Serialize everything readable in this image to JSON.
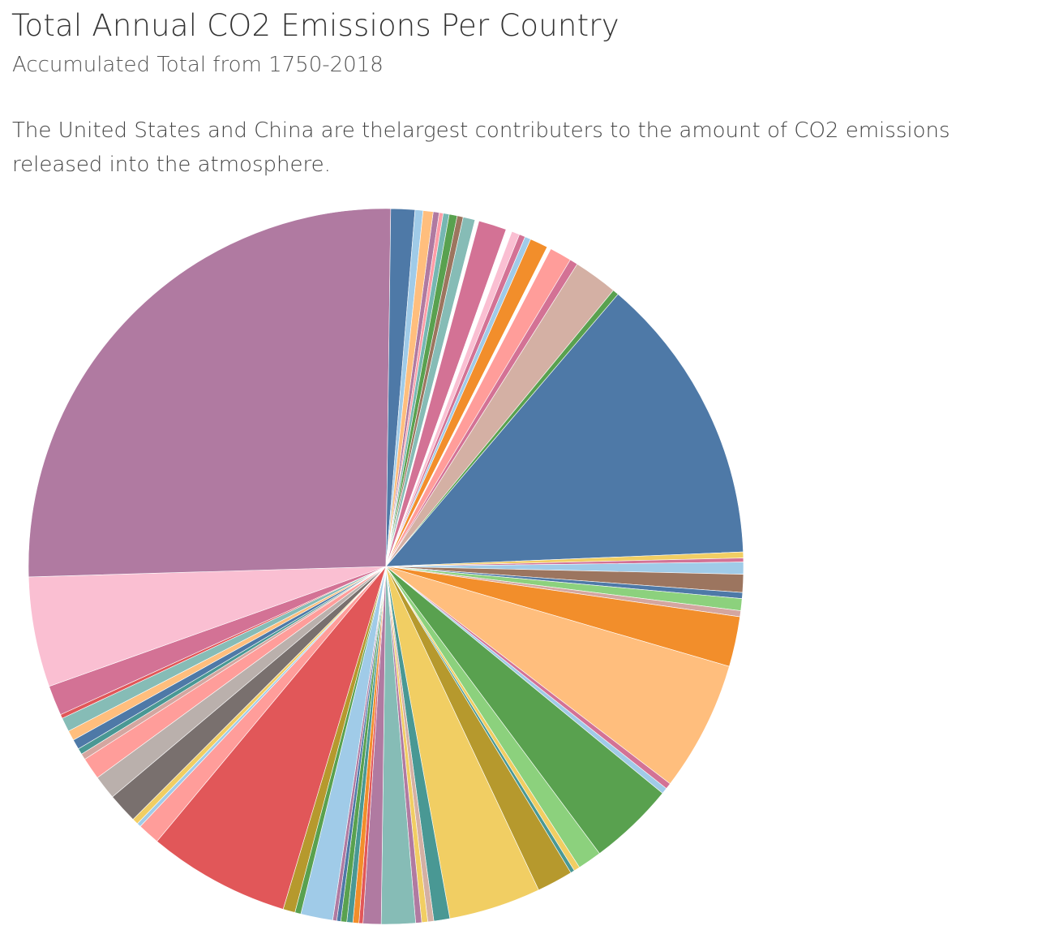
{
  "header": {
    "title": "Total Annual CO2 Emissions Per Country",
    "subtitle": "Accumulated Total from 1750-2018",
    "caption": "The United States and China are thelargest contributers to the amount of CO2 emissions released into the atmosphere."
  },
  "chart_data": {
    "type": "pie",
    "title": "Total Annual CO2 Emissions Per Country",
    "start_angle_deg": 7.6,
    "direction": "clockwise",
    "slices": [
      {
        "value": 0.3,
        "color": "#b07aa1"
      },
      {
        "value": 0.2,
        "color": "#ff9da7"
      },
      {
        "value": 0.3,
        "color": "#76b7b2"
      },
      {
        "value": 0.4,
        "color": "#59a14f"
      },
      {
        "value": 0.3,
        "color": "#9c755f"
      },
      {
        "value": 0.6,
        "color": "#86bcb6"
      },
      {
        "value": 0.2,
        "color": "#ffffff"
      },
      {
        "value": 1.4,
        "color": "#d37295"
      },
      {
        "value": 0.3,
        "color": "#ffffff"
      },
      {
        "value": 0.4,
        "color": "#fabfd2"
      },
      {
        "value": 0.3,
        "color": "#d37295"
      },
      {
        "value": 0.3,
        "color": "#a0cbe8"
      },
      {
        "value": 0.9,
        "color": "#f28e2b"
      },
      {
        "value": 0.2,
        "color": "#ffffff"
      },
      {
        "value": 1.1,
        "color": "#ff9d9a"
      },
      {
        "value": 0.4,
        "color": "#d37295"
      },
      {
        "value": 2.2,
        "color": "#d4b0a4"
      },
      {
        "value": 0.3,
        "color": "#59a14f"
      },
      {
        "value": 14.5,
        "color": "#4e79a7"
      },
      {
        "value": 0.3,
        "color": "#f1ce63"
      },
      {
        "value": 0.2,
        "color": "#d37295"
      },
      {
        "value": 0.6,
        "color": "#a0cbe8"
      },
      {
        "value": 0.9,
        "color": "#9c755f"
      },
      {
        "value": 0.3,
        "color": "#4e79a7"
      },
      {
        "value": 0.6,
        "color": "#8cd17d"
      },
      {
        "value": 0.3,
        "color": "#d4a6a0"
      },
      {
        "value": 2.5,
        "color": "#f28e2b"
      },
      {
        "value": 6.5,
        "color": "#ffbe7d"
      },
      {
        "value": 0.3,
        "color": "#d37295"
      },
      {
        "value": 0.3,
        "color": "#a0cbe8"
      },
      {
        "value": 4.3,
        "color": "#59a14f"
      },
      {
        "value": 1.2,
        "color": "#8cd17d"
      },
      {
        "value": 0.3,
        "color": "#f1ce63"
      },
      {
        "value": 0.2,
        "color": "#499894"
      },
      {
        "value": 1.8,
        "color": "#b6992d"
      },
      {
        "value": 4.6,
        "color": "#f1ce63"
      },
      {
        "value": 0.8,
        "color": "#499894"
      },
      {
        "value": 0.3,
        "color": "#d4b0a4"
      },
      {
        "value": 0.3,
        "color": "#f1ce63"
      },
      {
        "value": 0.3,
        "color": "#b07aa1"
      },
      {
        "value": 1.7,
        "color": "#86bcb6"
      },
      {
        "value": 0.9,
        "color": "#b07aa1"
      },
      {
        "value": 0.2,
        "color": "#e15759"
      },
      {
        "value": 0.3,
        "color": "#f28e2b"
      },
      {
        "value": 0.3,
        "color": "#499894"
      },
      {
        "value": 0.3,
        "color": "#59a14f"
      },
      {
        "value": 0.2,
        "color": "#4e79a7"
      },
      {
        "value": 0.2,
        "color": "#b07aa1"
      },
      {
        "value": 1.6,
        "color": "#a0cbe8"
      },
      {
        "value": 0.3,
        "color": "#59a14f"
      },
      {
        "value": 0.6,
        "color": "#b6992d"
      },
      {
        "value": 7.1,
        "color": "#e15759"
      },
      {
        "value": 1.1,
        "color": "#ff9d9a"
      },
      {
        "value": 0.2,
        "color": "#a0cbe8"
      },
      {
        "value": 0.3,
        "color": "#f1ce63"
      },
      {
        "value": 1.5,
        "color": "#79706e"
      },
      {
        "value": 1.2,
        "color": "#bab0ac"
      },
      {
        "value": 1.1,
        "color": "#ff9d9a"
      },
      {
        "value": 0.3,
        "color": "#d4a6a0"
      },
      {
        "value": 0.3,
        "color": "#499894"
      },
      {
        "value": 0.5,
        "color": "#4e79a7"
      },
      {
        "value": 0.5,
        "color": "#ffbe7d"
      },
      {
        "value": 0.7,
        "color": "#86bcb6"
      },
      {
        "value": 0.2,
        "color": "#e15759"
      },
      {
        "value": 1.5,
        "color": "#d37295"
      },
      {
        "value": 5.5,
        "color": "#fabfd2"
      },
      {
        "value": 28.4,
        "color": "#b07aa1"
      },
      {
        "value": 1.2,
        "color": "#4e79a7"
      },
      {
        "value": 0.4,
        "color": "#a0cbe8"
      },
      {
        "value": 0.5,
        "color": "#ffbe7d"
      }
    ]
  }
}
